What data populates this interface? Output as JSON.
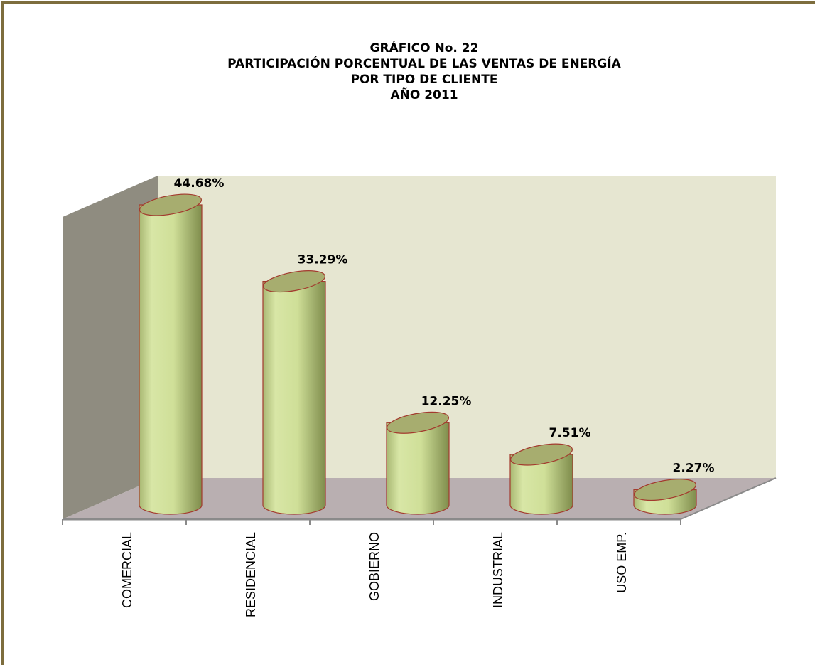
{
  "chart_data": {
    "type": "bar3d",
    "title": [
      "GRÁFICO No.  22",
      "PARTICIPACIÓN PORCENTUAL DE LAS VENTAS DE ENERGÍA",
      "POR TIPO DE CLIENTE",
      "AÑO 2011"
    ],
    "categories": [
      "COMERCIAL",
      "RESIDENCIAL",
      "GOBIERNO",
      "INDUSTRIAL",
      "USO EMP."
    ],
    "values": [
      44.68,
      33.29,
      12.25,
      7.51,
      2.27
    ],
    "value_labels": [
      "44.68%",
      "33.29%",
      "12.25%",
      "7.51%",
      "2.27%"
    ],
    "ylim": [
      0,
      45
    ],
    "color": "#d2e09c"
  }
}
